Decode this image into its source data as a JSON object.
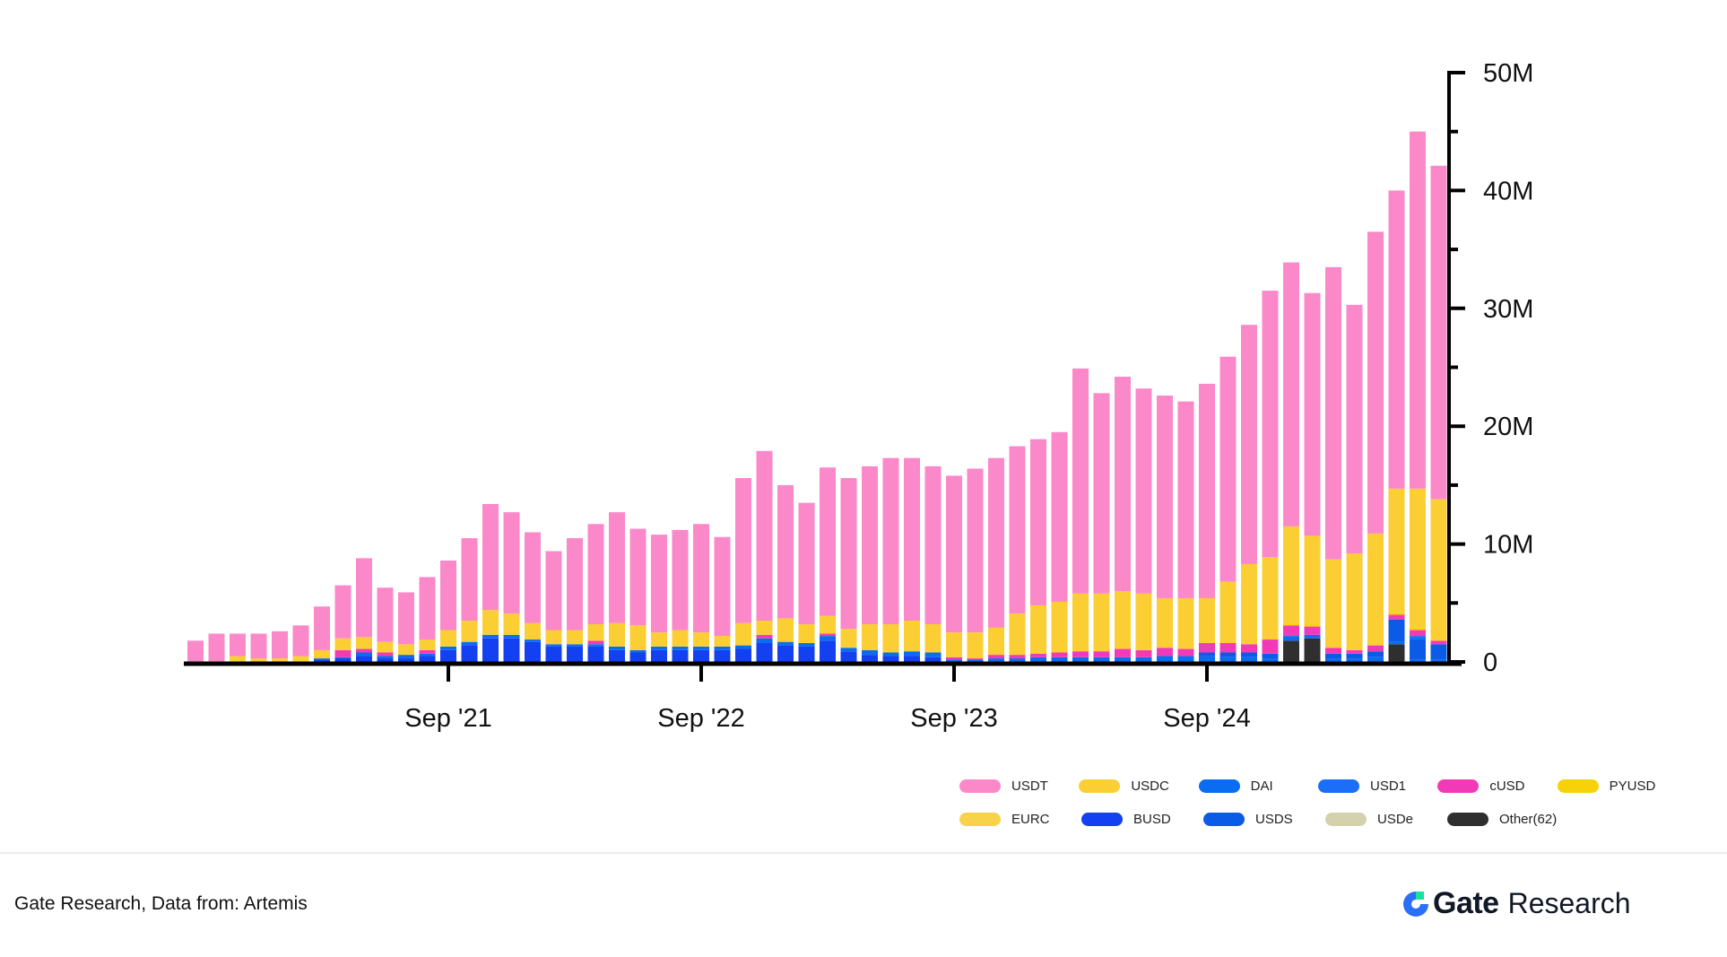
{
  "chart_data": {
    "type": "bar",
    "stacked": true,
    "title": "",
    "xlabel": "",
    "ylabel": "",
    "ylim": [
      0,
      50000000
    ],
    "y_ticks": [
      0,
      10000000,
      20000000,
      30000000,
      40000000,
      50000000
    ],
    "y_tick_labels": [
      "0",
      "10M",
      "20M",
      "30M",
      "40M",
      "50M"
    ],
    "y_axis_side": "right",
    "x_ticks": [
      {
        "index": 12,
        "label": "Sep '21"
      },
      {
        "index": 24,
        "label": "Sep '22"
      },
      {
        "index": 36,
        "label": "Sep '23"
      },
      {
        "index": 48,
        "label": "Sep '24"
      }
    ],
    "categories": [
      "Sep 2020",
      "Oct 2020",
      "Nov 2020",
      "Dec 2020",
      "Jan 2021",
      "Feb 2021",
      "Mar 2021",
      "Apr 2021",
      "May 2021",
      "Jun 2021",
      "Jul 2021",
      "Aug 2021",
      "Sep 2021",
      "Oct 2021",
      "Nov 2021",
      "Dec 2021",
      "Jan 2022",
      "Feb 2022",
      "Mar 2022",
      "Apr 2022",
      "May 2022",
      "Jun 2022",
      "Jul 2022",
      "Aug 2022",
      "Sep 2022",
      "Oct 2022",
      "Nov 2022",
      "Dec 2022",
      "Jan 2023",
      "Feb 2023",
      "Mar 2023",
      "Apr 2023",
      "May 2023",
      "Jun 2023",
      "Jul 2023",
      "Aug 2023",
      "Sep 2023",
      "Oct 2023",
      "Nov 2023",
      "Dec 2023",
      "Jan 2024",
      "Feb 2024",
      "Mar 2024",
      "Apr 2024",
      "May 2024",
      "Jun 2024",
      "Jul 2024",
      "Aug 2024",
      "Sep 2024",
      "Oct 2024",
      "Nov 2024",
      "Dec 2024",
      "Jan 2025",
      "Feb 2025",
      "Mar 2025",
      "Apr 2025",
      "May 2025",
      "Jun 2025",
      "Jul 2025",
      "Aug 2025"
    ],
    "series": [
      {
        "name": "Other(62)",
        "color": "#2f2f2f",
        "values": [
          0,
          0,
          0,
          0,
          0,
          0,
          0,
          0,
          0,
          0,
          0,
          0,
          0,
          0,
          0,
          0,
          0,
          0,
          0,
          0,
          0,
          0,
          0,
          0,
          0,
          0,
          0,
          0,
          0,
          0,
          0,
          0,
          0,
          0,
          0,
          0,
          0,
          0,
          0,
          0,
          0,
          0,
          0,
          0,
          0,
          0,
          0,
          0,
          0,
          0,
          0,
          0,
          1.8,
          2.0,
          0,
          0,
          0,
          1.5,
          0,
          0
        ]
      },
      {
        "name": "BUSD",
        "color": "#1340f0",
        "values": [
          0,
          0,
          0,
          0,
          0,
          0,
          0.2,
          0.3,
          0.5,
          0.3,
          0.3,
          0.5,
          1.0,
          1.4,
          2.0,
          2.0,
          1.7,
          1.3,
          1.3,
          1.3,
          1.0,
          0.8,
          1.0,
          1.0,
          1.0,
          1.0,
          1.1,
          1.6,
          1.4,
          1.3,
          1.8,
          0.9,
          0.6,
          0.5,
          0.5,
          0.4,
          0,
          0,
          0,
          0,
          0,
          0,
          0,
          0,
          0,
          0,
          0,
          0,
          0,
          0,
          0,
          0,
          0,
          0,
          0,
          0,
          0,
          0,
          0,
          0
        ]
      },
      {
        "name": "DAI",
        "color": "#0a6cf0",
        "values": [
          0,
          0,
          0,
          0,
          0,
          0,
          0.1,
          0.1,
          0.3,
          0.2,
          0.3,
          0.2,
          0.3,
          0.3,
          0.3,
          0.3,
          0.2,
          0.2,
          0.2,
          0.2,
          0.3,
          0.2,
          0.3,
          0.3,
          0.3,
          0.3,
          0.3,
          0.4,
          0.3,
          0.3,
          0.4,
          0.3,
          0.4,
          0.3,
          0.4,
          0.4,
          0.2,
          0.2,
          0.3,
          0.3,
          0.4,
          0.4,
          0.4,
          0.4,
          0.4,
          0.4,
          0.5,
          0.5,
          0.5,
          0.4,
          0.4,
          0.3,
          0.4,
          0.3,
          0.3,
          0.3,
          0.4,
          0.2,
          0.2,
          0.2
        ]
      },
      {
        "name": "USDS",
        "color": "#0b5be6",
        "values": [
          0,
          0,
          0,
          0,
          0,
          0,
          0,
          0,
          0,
          0,
          0,
          0,
          0,
          0,
          0,
          0,
          0,
          0,
          0,
          0,
          0,
          0,
          0,
          0,
          0,
          0,
          0,
          0,
          0,
          0,
          0,
          0,
          0,
          0,
          0,
          0,
          0,
          0,
          0,
          0,
          0,
          0,
          0,
          0,
          0,
          0,
          0,
          0,
          0.3,
          0.4,
          0.4,
          0.4,
          0,
          0,
          0.4,
          0.4,
          0.5,
          1.9,
          1.7,
          1.3
        ]
      },
      {
        "name": "USD1",
        "color": "#1a6ef7",
        "values": [
          0,
          0,
          0,
          0,
          0,
          0,
          0,
          0,
          0,
          0,
          0,
          0,
          0,
          0,
          0,
          0,
          0,
          0,
          0,
          0,
          0,
          0,
          0,
          0,
          0,
          0,
          0,
          0,
          0,
          0,
          0,
          0,
          0,
          0,
          0,
          0,
          0,
          0,
          0,
          0,
          0,
          0,
          0,
          0,
          0,
          0,
          0,
          0,
          0,
          0,
          0,
          0,
          0,
          0,
          0,
          0,
          0,
          0,
          0.3,
          0
        ]
      },
      {
        "name": "cUSD",
        "color": "#f23ab8",
        "values": [
          0,
          0,
          0,
          0,
          0,
          0,
          0,
          0.6,
          0.3,
          0.3,
          0,
          0.3,
          0,
          0,
          0,
          0,
          0,
          0,
          0,
          0.3,
          0,
          0,
          0,
          0,
          0,
          0,
          0,
          0.3,
          0,
          0,
          0.2,
          0,
          0,
          0,
          0,
          0,
          0.2,
          0.1,
          0.3,
          0.3,
          0.3,
          0.4,
          0.5,
          0.5,
          0.7,
          0.6,
          0.7,
          0.6,
          0.8,
          0.8,
          0.7,
          1.2,
          0.9,
          0.7,
          0.5,
          0.3,
          0.5,
          0.4,
          0.5,
          0.3
        ]
      },
      {
        "name": "PYUSD",
        "color": "#f7d20a",
        "values": [
          0,
          0,
          0,
          0,
          0,
          0,
          0,
          0,
          0,
          0,
          0,
          0,
          0,
          0,
          0,
          0,
          0,
          0,
          0,
          0,
          0,
          0,
          0,
          0,
          0,
          0,
          0,
          0,
          0,
          0,
          0,
          0,
          0,
          0,
          0,
          0,
          0,
          0,
          0,
          0,
          0,
          0,
          0,
          0,
          0,
          0,
          0,
          0,
          0,
          0,
          0,
          0,
          0.2,
          0.2,
          0,
          0,
          0,
          0.2,
          0.2,
          0
        ]
      },
      {
        "name": "USDC",
        "color": "#fbcf33",
        "values": [
          0,
          0,
          0.5,
          0.3,
          0.3,
          0.5,
          0.7,
          1.0,
          1.0,
          0.9,
          0.9,
          0.9,
          1.4,
          1.8,
          2.1,
          1.8,
          1.4,
          1.2,
          1.2,
          1.4,
          2.0,
          2.1,
          1.2,
          1.4,
          1.2,
          0.9,
          1.9,
          1.2,
          2.0,
          1.6,
          1.5,
          1.6,
          2.2,
          2.4,
          2.6,
          2.4,
          2.1,
          2.2,
          2.3,
          3.5,
          4.1,
          4.3,
          4.9,
          4.9,
          4.9,
          4.8,
          4.2,
          4.3,
          3.8,
          5.2,
          6.8,
          7.0,
          8.2,
          7.5,
          7.5,
          8.2,
          9.5,
          10.5,
          11.8,
          12.0
        ]
      },
      {
        "name": "EURC",
        "color": "#f8d24a",
        "values": [
          0,
          0,
          0,
          0,
          0,
          0,
          0,
          0,
          0,
          0,
          0,
          0,
          0,
          0,
          0,
          0,
          0,
          0,
          0,
          0,
          0,
          0,
          0,
          0,
          0,
          0,
          0,
          0,
          0,
          0,
          0,
          0,
          0,
          0,
          0,
          0,
          0,
          0,
          0,
          0,
          0,
          0,
          0,
          0,
          0,
          0,
          0,
          0,
          0,
          0,
          0,
          0,
          0,
          0,
          0,
          0,
          0,
          0,
          0,
          0
        ]
      },
      {
        "name": "USDe",
        "color": "#d4d1ad",
        "values": [
          0,
          0,
          0,
          0,
          0,
          0,
          0,
          0,
          0,
          0,
          0,
          0,
          0,
          0,
          0,
          0,
          0,
          0,
          0,
          0,
          0,
          0,
          0,
          0,
          0,
          0,
          0,
          0,
          0,
          0,
          0,
          0,
          0,
          0,
          0,
          0,
          0,
          0,
          0,
          0,
          0,
          0,
          0,
          0,
          0,
          0,
          0,
          0,
          0,
          0,
          0,
          0,
          0,
          0,
          0,
          0,
          0,
          0,
          0,
          0
        ]
      },
      {
        "name": "USDT",
        "color": "#fb88c9",
        "values": [
          1.8,
          2.4,
          1.9,
          2.1,
          2.3,
          2.6,
          3.7,
          4.5,
          6.7,
          4.6,
          4.4,
          5.3,
          5.9,
          7.0,
          9.0,
          8.6,
          7.7,
          6.7,
          7.8,
          8.5,
          9.4,
          8.2,
          8.3,
          8.5,
          9.2,
          8.4,
          12.3,
          14.4,
          11.3,
          10.3,
          12.6,
          12.8,
          13.4,
          14.1,
          13.8,
          13.4,
          13.3,
          13.9,
          14.4,
          14.2,
          14.1,
          14.4,
          19.1,
          17.0,
          18.2,
          17.4,
          17.2,
          16.7,
          18.2,
          19.1,
          20.3,
          22.6,
          22.4,
          20.6,
          24.8,
          21.1,
          25.6,
          25.3,
          30.3,
          28.3
        ]
      }
    ],
    "unit_multiplier": 1000000,
    "legend": {
      "position": "bottom-right",
      "rows": [
        [
          "USDT",
          "USDC",
          "DAI",
          "USD1",
          "cUSD",
          "PYUSD"
        ],
        [
          "EURC",
          "BUSD",
          "USDS",
          "USDe",
          "Other(62)"
        ]
      ]
    }
  },
  "legend_items": [
    {
      "label": "USDT",
      "color": "#fb88c9"
    },
    {
      "label": "USDC",
      "color": "#fbcf33"
    },
    {
      "label": "DAI",
      "color": "#0a6cf0"
    },
    {
      "label": "USD1",
      "color": "#1a6ef7"
    },
    {
      "label": "cUSD",
      "color": "#f23ab8"
    },
    {
      "label": "PYUSD",
      "color": "#f7d20a"
    },
    {
      "label": "EURC",
      "color": "#f8d24a"
    },
    {
      "label": "BUSD",
      "color": "#1340f0"
    },
    {
      "label": "USDS",
      "color": "#0b5be6"
    },
    {
      "label": "USDe",
      "color": "#d4d1ad"
    },
    {
      "label": "Other(62)",
      "color": "#2f2f2f"
    }
  ],
  "footer": {
    "source": "Gate Research, Data from:  Artemis",
    "brand_name": "Gate",
    "brand_suffix": "Research",
    "brand_color": "#2a6ff5",
    "brand_accent": "#17e0a1"
  }
}
